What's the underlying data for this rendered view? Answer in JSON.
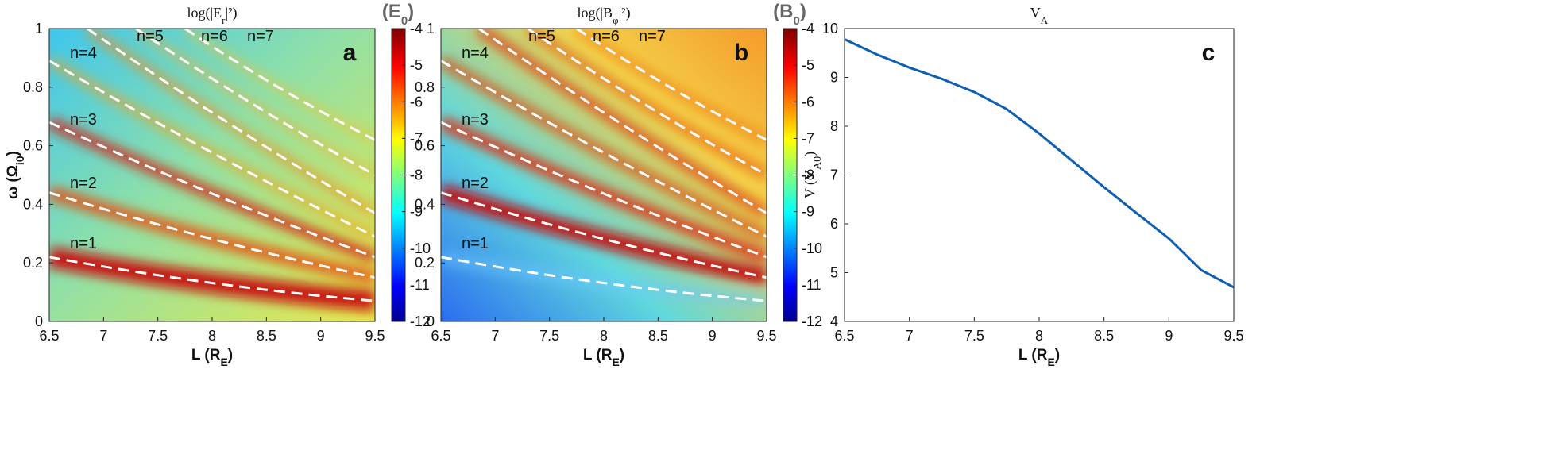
{
  "chart_data": [
    {
      "type": "heatmap",
      "title": [
        "log(|E",
        "r",
        "|²)"
      ],
      "colorbar_title": [
        "(E",
        "0",
        ")"
      ],
      "panel_label": "a",
      "xlabel": [
        "L (R",
        "E",
        ")"
      ],
      "ylabel": [
        "ω (Ω",
        "i0",
        ")"
      ],
      "xlim": [
        6.5,
        9.5
      ],
      "xticks": [
        6.5,
        7,
        7.5,
        8,
        8.5,
        9,
        9.5
      ],
      "ylim": [
        0,
        1
      ],
      "yticks": [
        0,
        0.2,
        0.4,
        0.6,
        0.8,
        1
      ],
      "clim": [
        -12,
        -4
      ],
      "cticks": [
        -4,
        -5,
        -6,
        -7,
        -8,
        -9,
        -10,
        -11,
        -12
      ],
      "annotations": [
        "n=1",
        "n=2",
        "n=3",
        "n=4",
        "n=5",
        "n=6",
        "n=7"
      ]
    },
    {
      "type": "heatmap",
      "title": [
        "log(|B",
        "φ",
        "|²)"
      ],
      "colorbar_title": [
        "(B",
        "0",
        ")"
      ],
      "panel_label": "b",
      "xlabel": [
        "L (R",
        "E",
        ")"
      ],
      "xlim": [
        6.5,
        9.5
      ],
      "xticks": [
        6.5,
        7,
        7.5,
        8,
        8.5,
        9,
        9.5
      ],
      "ylim": [
        0,
        1
      ],
      "yticks": [
        0,
        0.2,
        0.4,
        0.6,
        0.8,
        1
      ],
      "clim": [
        -12,
        -4
      ],
      "cticks": [
        -4,
        -5,
        -6,
        -7,
        -8,
        -9,
        -10,
        -11,
        -12
      ],
      "annotations": [
        "n=1",
        "n=2",
        "n=3",
        "n=4",
        "n=5",
        "n=6",
        "n=7"
      ]
    },
    {
      "type": "line",
      "title": [
        "V",
        "A"
      ],
      "panel_label": "c",
      "xlabel": [
        "L (R",
        "E",
        ")"
      ],
      "ylabel": [
        "V (V",
        "A0",
        ")"
      ],
      "xlim": [
        6.5,
        9.5
      ],
      "xticks": [
        6.5,
        7,
        7.5,
        8,
        8.5,
        9,
        9.5
      ],
      "ylim": [
        4,
        10
      ],
      "yticks": [
        4,
        5,
        6,
        7,
        8,
        9,
        10
      ],
      "series": [
        {
          "color": "#0f5fb0",
          "x": [
            6.5,
            6.75,
            7,
            7.25,
            7.5,
            7.75,
            8,
            8.25,
            8.5,
            8.75,
            9,
            9.25,
            9.5
          ],
          "values": [
            9.78,
            9.47,
            9.2,
            8.97,
            8.7,
            8.35,
            7.85,
            7.3,
            6.75,
            6.22,
            5.7,
            5.05,
            4.7
          ]
        }
      ]
    }
  ]
}
